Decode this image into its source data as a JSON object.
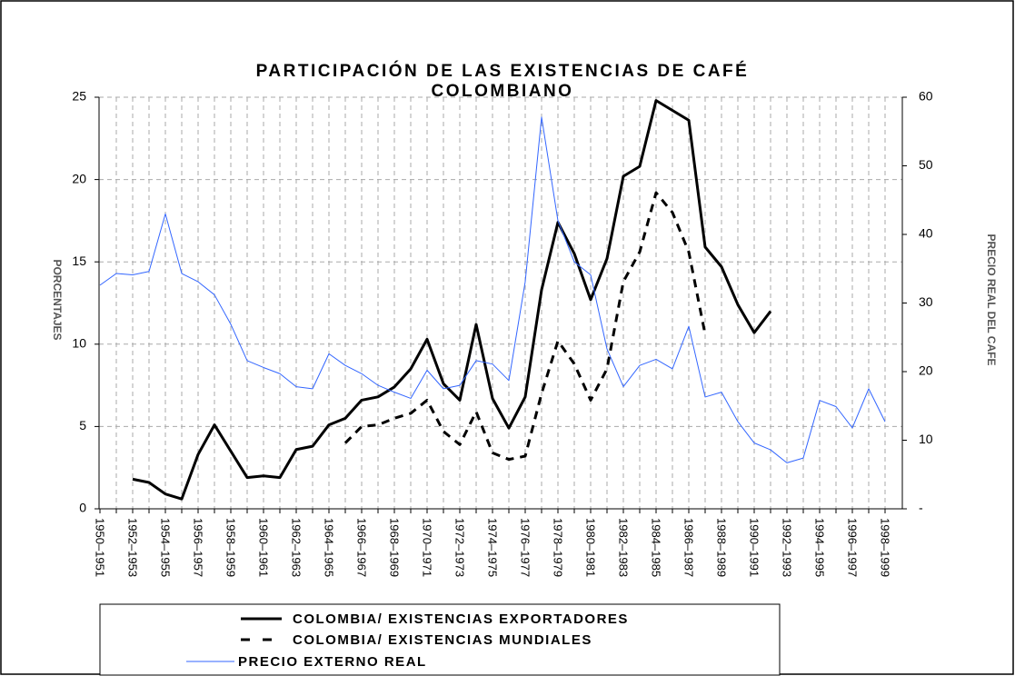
{
  "chart_data": {
    "type": "line",
    "title": [
      "PARTICIPACIÓN DE LAS EXISTENCIAS DE CAFÉ",
      "COLOMBIANO"
    ],
    "ylabel": "PORCENTAJES",
    "y2label": "PRECIO REAL DEL CAFE",
    "categories": [
      "1950–1951",
      null,
      "1952–1953",
      null,
      "1954–1955",
      null,
      "1956–1957",
      null,
      "1958–1959",
      null,
      "1960–1961",
      null,
      "1962–1963",
      null,
      "1964–1965",
      null,
      "1966–1967",
      null,
      "1968–1969",
      null,
      "1970–1971",
      null,
      "1972–1973",
      null,
      "1974–1975",
      null,
      "1976–1977",
      null,
      "1978–1979",
      null,
      "1980–1981",
      null,
      "1982–1983",
      null,
      "1984–1985",
      null,
      "1986–1987",
      null,
      "1988–1989",
      null,
      "1990–1991",
      null,
      "1992–1993",
      null,
      "1994–1995",
      null,
      "1996–1997",
      null,
      "1998–1999"
    ],
    "ylim": [
      0,
      25
    ],
    "yticks": [
      0,
      5,
      10,
      15,
      20,
      25
    ],
    "y2lim": [
      0,
      60
    ],
    "y2ticks": [
      {
        "value": 0,
        "label": "-"
      },
      10,
      20,
      30,
      40,
      50,
      60
    ],
    "grid": true,
    "series": [
      {
        "name": "COLOMBIA/ EXISTENCIAS EXPORTADORES",
        "color": "#000000",
        "style": "solid",
        "width": 3,
        "values": [
          null,
          null,
          1.8,
          1.6,
          0.9,
          0.6,
          3.3,
          5.1,
          3.5,
          1.9,
          2.0,
          1.9,
          3.6,
          3.8,
          5.1,
          5.5,
          6.6,
          6.8,
          7.4,
          8.5,
          10.3,
          7.6,
          6.6,
          11.2,
          6.7,
          4.9,
          6.8,
          13.3,
          17.4,
          15.5,
          12.7,
          15.2,
          20.2,
          20.8,
          24.8,
          24.2,
          23.6,
          15.9,
          14.7,
          12.4,
          10.7,
          12.0,
          null,
          null,
          null,
          null,
          null,
          null,
          null
        ]
      },
      {
        "name": "COLOMBIA/ EXISTENCIAS MUNDIALES",
        "color": "#000000",
        "style": "dashed",
        "width": 3,
        "values": [
          null,
          null,
          null,
          null,
          null,
          null,
          null,
          null,
          null,
          null,
          null,
          null,
          null,
          null,
          null,
          4.0,
          5.0,
          5.1,
          5.5,
          5.8,
          6.6,
          4.7,
          3.9,
          5.9,
          3.4,
          3.0,
          3.2,
          7.0,
          10.2,
          8.8,
          6.6,
          8.5,
          13.8,
          15.6,
          19.2,
          18.0,
          15.6,
          10.6,
          null,
          null,
          null,
          null,
          null,
          null,
          null,
          null,
          null,
          null,
          null
        ]
      },
      {
        "name": "PRECIO EXTERNO REAL",
        "color": "#3366ff",
        "style": "solid",
        "width": 1,
        "axis": "y2",
        "values": [
          32.6,
          34.3,
          34.1,
          34.6,
          43.0,
          34.3,
          33.1,
          31.2,
          26.9,
          21.6,
          20.6,
          19.7,
          17.8,
          17.5,
          22.6,
          20.9,
          19.7,
          18.0,
          17.0,
          16.1,
          20.2,
          17.5,
          18.0,
          21.6,
          21.1,
          18.7,
          33.1,
          57.1,
          42.0,
          36.0,
          34.1,
          23.3,
          17.8,
          20.9,
          21.8,
          20.4,
          26.6,
          16.3,
          17.0,
          12.7,
          9.6,
          8.6,
          6.7,
          7.4,
          15.8,
          14.9,
          11.8,
          17.5,
          12.7
        ]
      }
    ]
  }
}
